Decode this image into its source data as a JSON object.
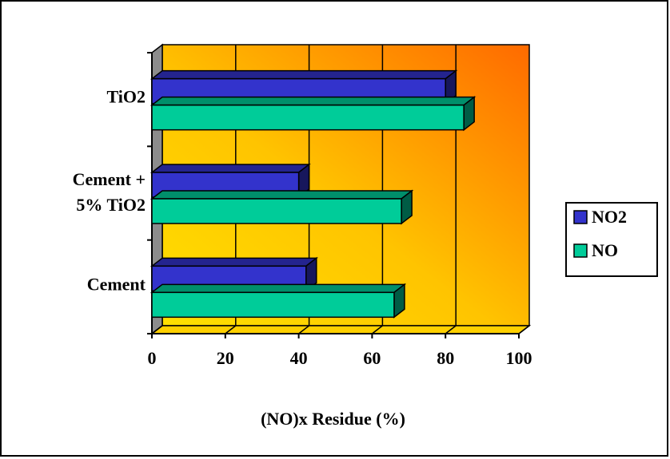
{
  "chart_data": {
    "type": "bar",
    "orientation": "horizontal",
    "style": "3d",
    "categories": [
      "Cement",
      "Cement +\n5% TiO2",
      "TiO2"
    ],
    "series": [
      {
        "name": "NO2",
        "values": [
          42,
          40,
          80
        ],
        "color": "#3333cc"
      },
      {
        "name": "NO",
        "values": [
          66,
          68,
          85
        ],
        "color": "#00cc99"
      }
    ],
    "xlabel": "(NO)x Residue (%)",
    "ylabel": "",
    "xlim": [
      0,
      100
    ],
    "xticks": [
      0,
      20,
      40,
      60,
      80,
      100
    ],
    "grid": true,
    "legend_position": "right"
  }
}
